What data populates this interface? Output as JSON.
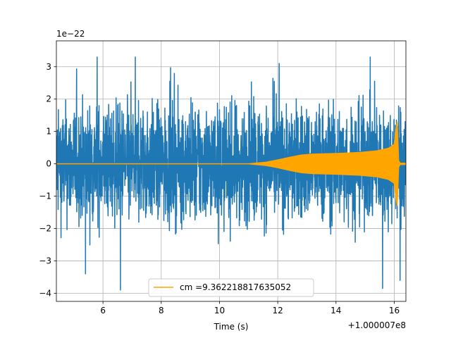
{
  "chart_data": {
    "type": "line",
    "title": "",
    "xlabel": "Time (s)",
    "ylabel": "",
    "x_offset_label": "+1.000007e8",
    "y_scale_label": "1e−22",
    "xlim": [
      4.4,
      16.4
    ],
    "ylim": [
      -4.25,
      3.8
    ],
    "x_ticks": [
      6,
      8,
      10,
      12,
      14,
      16
    ],
    "x_tick_labels": [
      "6",
      "8",
      "10",
      "12",
      "14",
      "16"
    ],
    "y_ticks": [
      -4,
      -3,
      -2,
      -1,
      0,
      1,
      2,
      3
    ],
    "y_tick_labels": [
      "−4",
      "−3",
      "−2",
      "−1",
      "0",
      "1",
      "2",
      "3"
    ],
    "grid": true,
    "legend_position": "lower-center",
    "series": [
      {
        "kind": "noise",
        "color": "#1f77b4",
        "x_range": [
          4.4,
          16.4
        ],
        "typical_band": [
          -1.6,
          1.6
        ],
        "peak_max": 3.3,
        "peak_min": -3.9,
        "notable_peaks": [
          {
            "x": 5.8,
            "y": 3.3
          },
          {
            "x": 6.6,
            "y": -3.9
          },
          {
            "x": 5.4,
            "y": -3.4
          },
          {
            "x": 12.05,
            "y": 3.1
          },
          {
            "x": 15.6,
            "y": -3.85
          },
          {
            "x": 16.2,
            "y": 3.0
          },
          {
            "x": 16.2,
            "y": -3.6
          }
        ]
      },
      {
        "kind": "chirp",
        "name": "cm =9.362218817635052",
        "color": "#ffa500",
        "envelope_x": [
          4.4,
          11.0,
          11.6,
          12.0,
          12.4,
          12.8,
          13.2,
          14.0,
          14.8,
          15.4,
          15.8,
          16.0,
          16.05,
          16.1,
          16.15,
          16.2,
          16.4
        ],
        "envelope_amplitude": [
          0.0,
          0.0,
          0.05,
          0.12,
          0.2,
          0.27,
          0.3,
          0.32,
          0.35,
          0.4,
          0.48,
          0.6,
          1.0,
          1.3,
          0.1,
          0.02,
          0.02
        ]
      }
    ]
  }
}
